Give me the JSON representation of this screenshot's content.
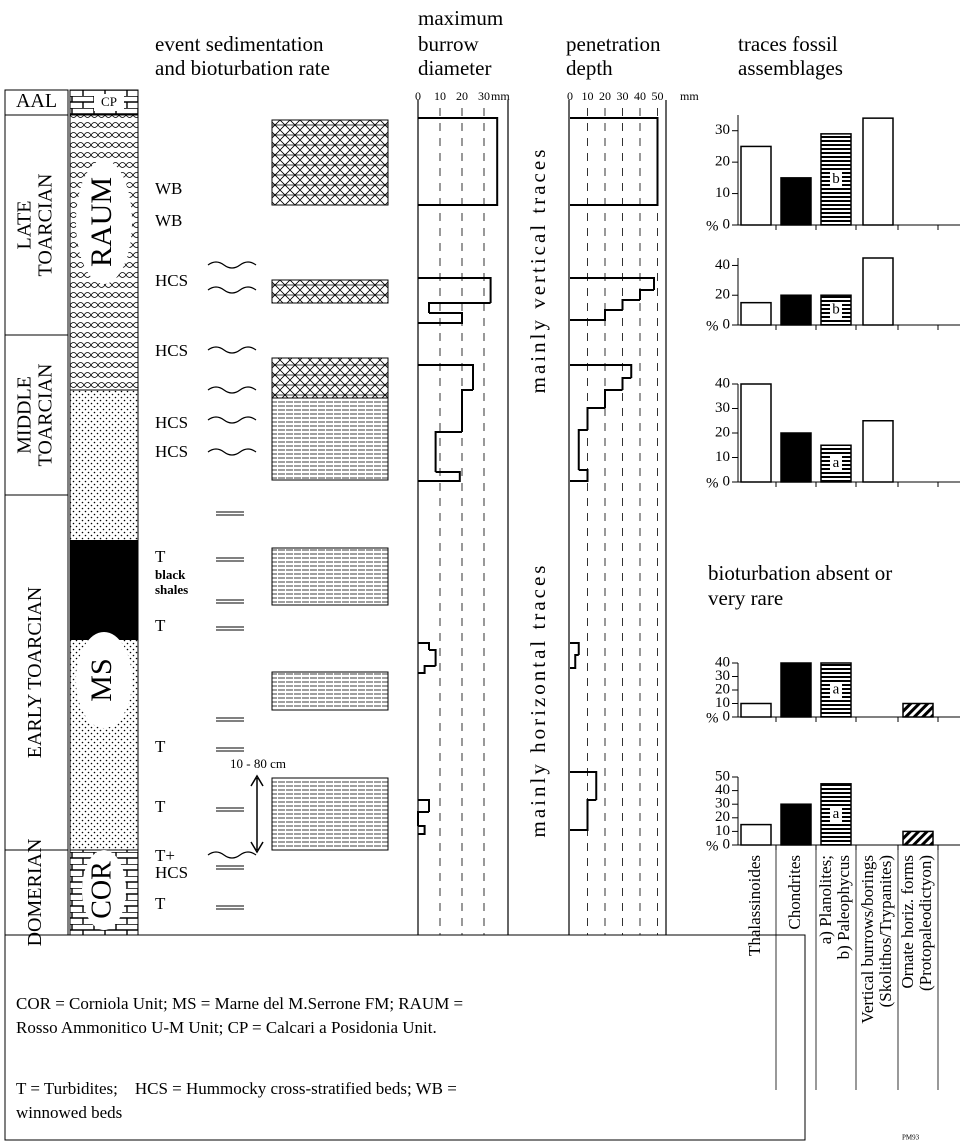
{
  "header": {
    "event": [
      "event sedimentation",
      "and bioturbation rate"
    ],
    "burrow": [
      "maximum",
      "burrow",
      "diameter"
    ],
    "penetration": [
      "penetration",
      "depth"
    ],
    "assemblages": [
      "traces fossil",
      "assemblages"
    ]
  },
  "stages": [
    [
      "AAL"
    ],
    [
      "LATE",
      "TOARCIAN"
    ],
    [
      "MIDDLE",
      "TOARCIAN"
    ],
    [
      "EARLY TOARCIAN"
    ],
    [
      "DOMERIAN"
    ]
  ],
  "units": [
    "CP",
    "RAUM",
    "MS",
    "COR"
  ],
  "events": [
    [
      "WB"
    ],
    [
      "WB"
    ],
    [
      "HCS"
    ],
    [
      "HCS"
    ],
    [
      "HCS"
    ],
    [
      "HCS"
    ],
    [
      "T"
    ],
    [
      "black",
      "shales"
    ],
    [
      "T"
    ],
    [
      "T"
    ],
    [
      "T"
    ],
    [
      "T+"
    ],
    [
      "HCS"
    ],
    [
      "T"
    ]
  ],
  "thickness": "10 - 80 cm",
  "burrow_diameter": {
    "unit": "mm",
    "ticks": [
      0,
      10,
      20,
      30
    ],
    "values": [
      36,
      33,
      5,
      20,
      25,
      20,
      8,
      19,
      5,
      8,
      3,
      5,
      0,
      3
    ]
  },
  "penetration_depth": {
    "unit": "mm",
    "ticks": [
      0,
      10,
      20,
      30,
      40,
      50
    ],
    "values": [
      50,
      48,
      40,
      30,
      20,
      35,
      30,
      20,
      10,
      5,
      10,
      5,
      3,
      15,
      10
    ]
  },
  "trace_orientation": [
    "mainly vertical traces",
    "mainly horizontal traces"
  ],
  "assemblages": {
    "categories": [
      [
        "Thalassinoides"
      ],
      [
        "Chondrites"
      ],
      [
        "a) Planolites;",
        "b) Paleophycus"
      ],
      [
        "Vertical burrows/borings",
        "(Skolithos/Trypanites)"
      ],
      [
        "Ornate horiz. forms",
        "(Protopaleodictyon)"
      ]
    ],
    "unit": "%",
    "charts": [
      {
        "ylim": [
          0,
          35
        ],
        "yticks": [
          0,
          10,
          20,
          30
        ],
        "values": [
          25,
          15,
          29,
          34,
          null
        ],
        "sublabel": "b"
      },
      {
        "ylim": [
          0,
          45
        ],
        "yticks": [
          0,
          20,
          40
        ],
        "values": [
          15,
          20,
          20,
          45,
          null
        ],
        "sublabel": "b"
      },
      {
        "ylim": [
          0,
          40
        ],
        "yticks": [
          0,
          10,
          20,
          30,
          40
        ],
        "values": [
          40,
          20,
          15,
          25,
          null
        ],
        "sublabel": "a"
      },
      {
        "ylim": [
          0,
          40
        ],
        "yticks": [
          0,
          10,
          20,
          30,
          40
        ],
        "values": [
          10,
          40,
          40,
          null,
          10
        ],
        "sublabel": "a"
      },
      {
        "ylim": [
          0,
          50
        ],
        "yticks": [
          0,
          10,
          20,
          30,
          40,
          50
        ],
        "values": [
          15,
          30,
          45,
          null,
          10
        ],
        "sublabel": "a"
      }
    ],
    "absent_note": [
      "bioturbation absent or",
      "very rare"
    ]
  },
  "legend": [
    [
      "COR = Corniola Unit; MS = Marne del M.Serrone FM; RAUM =",
      "Rosso Ammonitico U-M Unit; CP = Calcari a Posidonia Unit."
    ],
    [
      "T = Turbidites;    HCS = Hummocky cross-stratified beds; WB =",
      "winnowed beds"
    ]
  ],
  "figure_id": "PM93"
}
